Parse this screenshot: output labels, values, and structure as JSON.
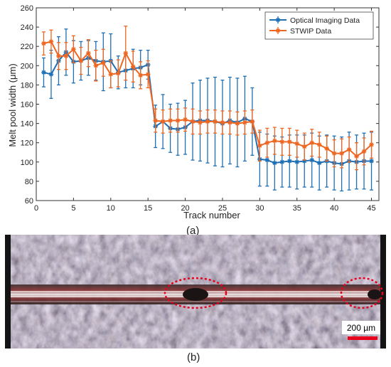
{
  "chart_data": {
    "type": "line",
    "xlabel": "Track number",
    "ylabel": "Melt pool width (μm)",
    "xlim": [
      0,
      46
    ],
    "ylim": [
      60,
      260
    ],
    "xticks": [
      0,
      5,
      10,
      15,
      20,
      25,
      30,
      35,
      40,
      45
    ],
    "yticks": [
      60,
      80,
      100,
      120,
      140,
      160,
      180,
      200,
      220,
      240,
      260
    ],
    "legend_position": "top-right",
    "grid": false,
    "x": [
      1,
      2,
      3,
      4,
      5,
      6,
      7,
      8,
      9,
      10,
      11,
      12,
      13,
      14,
      15,
      16,
      17,
      18,
      19,
      20,
      21,
      22,
      23,
      24,
      25,
      26,
      27,
      28,
      29,
      30,
      31,
      32,
      33,
      34,
      35,
      36,
      37,
      38,
      39,
      40,
      41,
      42,
      43,
      44,
      45
    ],
    "series": [
      {
        "name": "Optical Imaging Data",
        "color": "#1f6fb4",
        "values": [
          193,
          191,
          205,
          214,
          204,
          205,
          208,
          205,
          204,
          205,
          193,
          195,
          197,
          198,
          201,
          137,
          142,
          135,
          134,
          136,
          142,
          143,
          143,
          142,
          140,
          143,
          141,
          145,
          142,
          103,
          102,
          99,
          100,
          101,
          100,
          101,
          102,
          99,
          101,
          99,
          98,
          101,
          100,
          101,
          101
        ],
        "errors": [
          15,
          25,
          25,
          24,
          22,
          20,
          18,
          20,
          30,
          28,
          17,
          18,
          20,
          18,
          15,
          22,
          28,
          25,
          27,
          28,
          40,
          42,
          44,
          46,
          45,
          45,
          46,
          44,
          35,
          28,
          27,
          28,
          26,
          27,
          28,
          27,
          28,
          28,
          27,
          28,
          28,
          30,
          28,
          29,
          30
        ]
      },
      {
        "name": "STWIP Data",
        "color": "#ef6620",
        "values": [
          223,
          225,
          210,
          210,
          217,
          205,
          213,
          200,
          203,
          191,
          192,
          213,
          199,
          190,
          191,
          143,
          142,
          143,
          143,
          144,
          142,
          141,
          142,
          142,
          141,
          141,
          140,
          141,
          142,
          117,
          120,
          122,
          121,
          121,
          119,
          116,
          120,
          118,
          114,
          109,
          109,
          113,
          106,
          111,
          118
        ],
        "errors": [
          12,
          12,
          14,
          14,
          14,
          14,
          14,
          16,
          14,
          14,
          14,
          28,
          16,
          14,
          14,
          12,
          12,
          12,
          12,
          12,
          13,
          12,
          12,
          12,
          12,
          12,
          12,
          12,
          12,
          16,
          15,
          14,
          14,
          14,
          14,
          14,
          14,
          13,
          13,
          14,
          15,
          13,
          14,
          14,
          14
        ]
      }
    ]
  },
  "captions": {
    "a": "(a)",
    "b": "(b)"
  },
  "micrograph": {
    "scale_bar_label": "200 µm",
    "scale_bar_color": "#e8001c",
    "highlight_color": "#e8001c"
  }
}
